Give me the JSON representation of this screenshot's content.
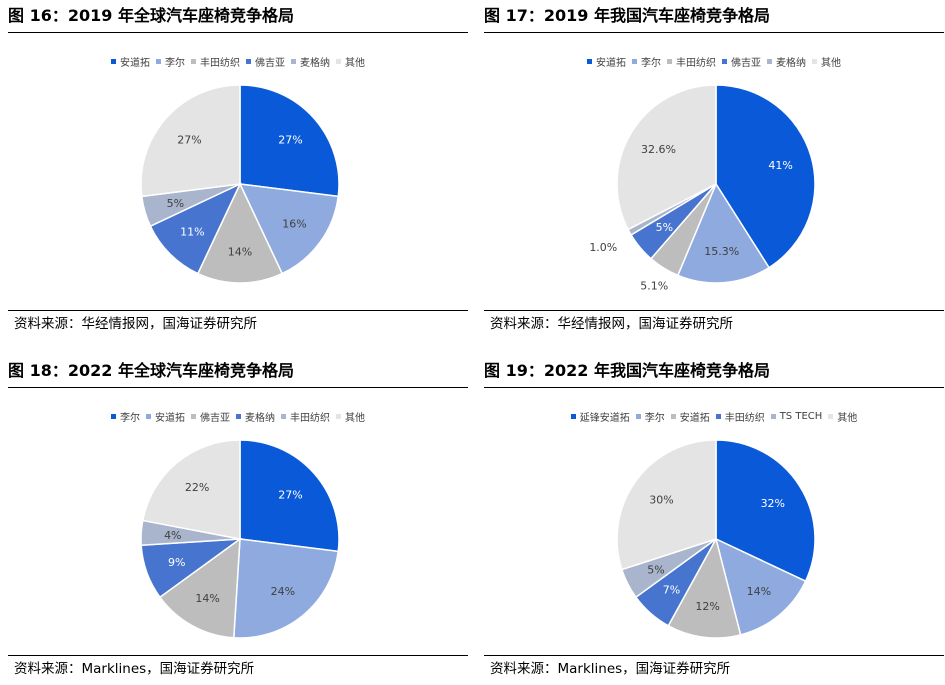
{
  "colors": {
    "blue": "#0a59d9",
    "lightblue": "#8eaadf",
    "gray": "#bdbdbd",
    "midblue": "#4674ce",
    "bluegray": "#a8b5cc",
    "lightgray": "#e4e4e4"
  },
  "panels": [
    {
      "title": "图 16：2019 年全球汽车座椅竞争格局",
      "source": "资料来源：华经情报网，国海证券研究所"
    },
    {
      "title": "图 17：2019 年我国汽车座椅竞争格局",
      "source": "资料来源：华经情报网，国海证券研究所"
    },
    {
      "title": "图 18：2022 年全球汽车座椅竞争格局",
      "source": "资料来源：Marklines，国海证券研究所"
    },
    {
      "title": "图 19：2022 年我国汽车座椅竞争格局",
      "source": "资料来源：Marklines，国海证券研究所"
    }
  ],
  "chart_data": [
    {
      "type": "pie",
      "categories": [
        "安道拓",
        "李尔",
        "丰田纺织",
        "佛吉亚",
        "麦格纳",
        "其他"
      ],
      "values": [
        27,
        16,
        14,
        11,
        5,
        27
      ],
      "labels": [
        "27%",
        "16%",
        "14%",
        "11%",
        "5%",
        "27%"
      ],
      "colors": [
        "#0a59d9",
        "#8eaadf",
        "#bdbdbd",
        "#4674ce",
        "#a8b5cc",
        "#e4e4e4"
      ],
      "legend_position": "top"
    },
    {
      "type": "pie",
      "categories": [
        "安道拓",
        "李尔",
        "丰田纺织",
        "佛吉亚",
        "麦格纳",
        "其他"
      ],
      "values": [
        41,
        15.3,
        5.1,
        5,
        1.0,
        32.6
      ],
      "labels": [
        "41%",
        "15.3%",
        "5.1%",
        "5%",
        "1.0%",
        "32.6%"
      ],
      "colors": [
        "#0a59d9",
        "#8eaadf",
        "#bdbdbd",
        "#4674ce",
        "#a8b5cc",
        "#e4e4e4"
      ],
      "legend_position": "top"
    },
    {
      "type": "pie",
      "categories": [
        "李尔",
        "安道拓",
        "佛吉亚",
        "麦格纳",
        "丰田纺织",
        "其他"
      ],
      "values": [
        27,
        24,
        14,
        9,
        4,
        22
      ],
      "labels": [
        "27%",
        "24%",
        "14%",
        "9%",
        "4%",
        "22%"
      ],
      "colors": [
        "#0a59d9",
        "#8eaadf",
        "#bdbdbd",
        "#4674ce",
        "#a8b5cc",
        "#e4e4e4"
      ],
      "legend_position": "top"
    },
    {
      "type": "pie",
      "categories": [
        "延锋安道拓",
        "李尔",
        "安道拓",
        "丰田纺织",
        "TS TECH",
        "其他"
      ],
      "values": [
        32,
        14,
        12,
        7,
        5,
        30
      ],
      "labels": [
        "32%",
        "14%",
        "12%",
        "7%",
        "5%",
        "30%"
      ],
      "colors": [
        "#0a59d9",
        "#8eaadf",
        "#bdbdbd",
        "#4674ce",
        "#a8b5cc",
        "#e4e4e4"
      ],
      "legend_position": "top"
    }
  ]
}
